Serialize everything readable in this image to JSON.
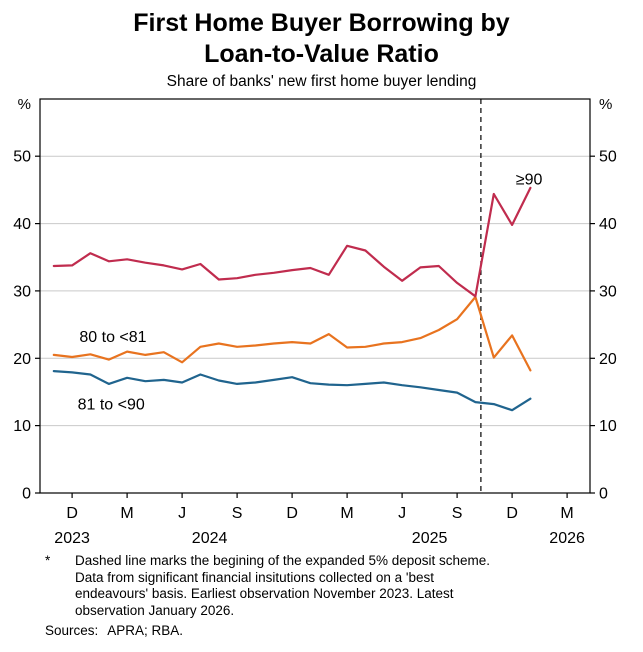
{
  "header": {
    "title_line1": "First Home Buyer Borrowing by",
    "title_line2": "Loan-to-Value Ratio",
    "subtitle": "Share of banks' new first home buyer lending"
  },
  "footnotes": {
    "marker": "*",
    "text": "Dashed line marks the begining of the expanded 5% deposit scheme.\nData from significant financial insitutions collected on a 'best\nendeavours' basis. Earliest observation November 2023. Latest\nobservation January 2026.",
    "sources_label": "Sources:",
    "sources": "APRA; RBA."
  },
  "chart_data": {
    "type": "line",
    "title": "First Home Buyer Borrowing by Loan-to-Value Ratio",
    "subtitle": "Share of banks' new first home buyer lending",
    "ylabel_left": "%",
    "ylabel_right": "%",
    "ylim": [
      0,
      58.5
    ],
    "yticks": [
      0,
      10,
      20,
      30,
      40,
      50
    ],
    "xlim": [
      -0.75,
      29.25
    ],
    "grid": "horizontal",
    "legend": "inline-colored-labels",
    "x_months": [
      "Nov 2023",
      "Dec 2023",
      "Jan 2024",
      "Feb 2024",
      "Mar 2024",
      "Apr 2024",
      "May 2024",
      "Jun 2024",
      "Jul 2024",
      "Aug 2024",
      "Sep 2024",
      "Oct 2024",
      "Nov 2024",
      "Dec 2024",
      "Jan 2025",
      "Feb 2025",
      "Mar 2025",
      "Apr 2025",
      "May 2025",
      "Jun 2025",
      "Jul 2025",
      "Aug 2025",
      "Sep 2025",
      "Oct 2025",
      "Nov 2025",
      "Dec 2025",
      "Jan 2026"
    ],
    "xticks": [
      {
        "i": 1,
        "label": "D"
      },
      {
        "i": 4,
        "label": "M"
      },
      {
        "i": 7,
        "label": "J"
      },
      {
        "i": 10,
        "label": "S"
      },
      {
        "i": 13,
        "label": "D"
      },
      {
        "i": 16,
        "label": "M"
      },
      {
        "i": 19,
        "label": "J"
      },
      {
        "i": 22,
        "label": "S"
      },
      {
        "i": 25,
        "label": "D"
      },
      {
        "i": 28,
        "label": "M"
      }
    ],
    "year_labels": [
      {
        "i": 1,
        "label": "2023"
      },
      {
        "i": 8.5,
        "label": "2024"
      },
      {
        "i": 20.5,
        "label": "2025"
      },
      {
        "i": 28,
        "label": "2026"
      }
    ],
    "dashed_line": {
      "i": 23.3,
      "meaning": "begining of the expanded 5% deposit scheme"
    },
    "series": [
      {
        "name": "81 to <90",
        "color": "#20648e",
        "label_anchor": {
          "i": 1.3,
          "v": 12.4
        },
        "values": [
          18.1,
          17.9,
          17.6,
          16.2,
          17.1,
          16.6,
          16.8,
          16.4,
          17.6,
          16.7,
          16.2,
          16.4,
          16.8,
          17.2,
          16.3,
          16.1,
          16.0,
          16.2,
          16.4,
          16.0,
          15.7,
          15.3,
          14.9,
          13.5,
          13.2,
          12.3,
          14.0
        ]
      },
      {
        "name": "80 to <81",
        "color": "#e8731f",
        "label_anchor": {
          "i": 1.4,
          "v": 22.4
        },
        "values": [
          20.5,
          20.2,
          20.6,
          19.8,
          21.0,
          20.5,
          20.9,
          19.4,
          21.7,
          22.2,
          21.7,
          21.9,
          22.2,
          22.4,
          22.2,
          23.6,
          21.6,
          21.7,
          22.2,
          22.4,
          23.0,
          24.2,
          25.8,
          29.1,
          20.1,
          23.4,
          18.2
        ]
      },
      {
        "name": "≥90",
        "color": "#c02c4e",
        "label_anchor": {
          "i": 25.2,
          "v": 45.8
        },
        "values": [
          33.7,
          33.8,
          35.6,
          34.4,
          34.7,
          34.2,
          33.8,
          33.2,
          34.0,
          31.7,
          31.9,
          32.4,
          32.7,
          33.1,
          33.4,
          32.4,
          36.7,
          36.0,
          33.6,
          31.5,
          33.5,
          33.7,
          31.2,
          29.2,
          44.4,
          39.8,
          45.3
        ]
      }
    ]
  }
}
